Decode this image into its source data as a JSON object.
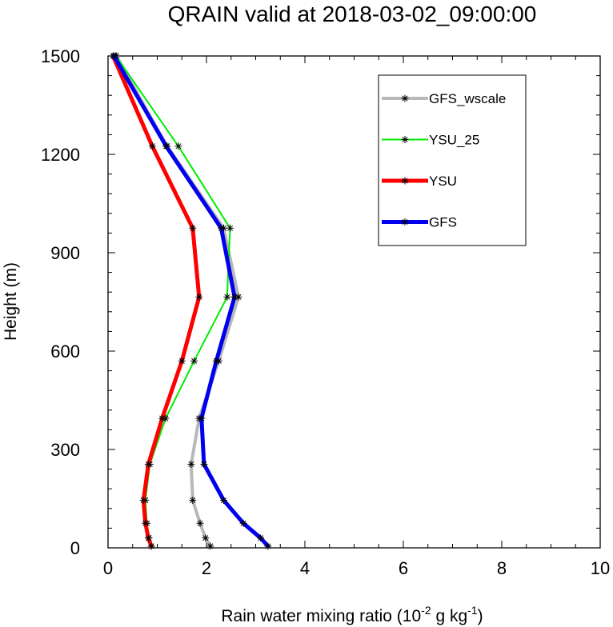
{
  "chart_data": {
    "type": "line",
    "title": "QRAIN valid at 2018-03-02_09:00:00",
    "xlabel": {
      "base": "Rain water mixing ratio (10",
      "exp1": "-2",
      "mid": " g kg",
      "exp2": "-1",
      "end": ")"
    },
    "ylabel": "Height (m)",
    "xlim": [
      0,
      10
    ],
    "ylim": [
      0,
      1500
    ],
    "xticks": [
      0,
      2,
      4,
      6,
      8,
      10
    ],
    "yticks": [
      0,
      300,
      600,
      900,
      1200,
      1500
    ],
    "grid": false,
    "legend_position": "top-right",
    "series": [
      {
        "name": "GFS_wscale",
        "color": "#b8b8b8",
        "width": 4,
        "x": [
          2.08,
          1.98,
          1.87,
          1.72,
          1.69,
          1.85,
          2.25,
          2.65,
          2.35,
          1.2,
          0.17
        ],
        "y": [
          5,
          30,
          75,
          145,
          255,
          395,
          570,
          765,
          975,
          1225,
          1500
        ]
      },
      {
        "name": "YSU_25",
        "color": "#00ee00",
        "width": 2,
        "x": [
          0.88,
          0.83,
          0.79,
          0.76,
          0.85,
          1.17,
          1.75,
          2.42,
          2.48,
          1.43,
          0.16
        ],
        "y": [
          5,
          30,
          75,
          145,
          255,
          395,
          570,
          765,
          975,
          1225,
          1500
        ]
      },
      {
        "name": "YSU",
        "color": "#ff0000",
        "width": 5,
        "x": [
          0.88,
          0.82,
          0.76,
          0.72,
          0.82,
          1.1,
          1.5,
          1.85,
          1.72,
          0.9,
          0.1
        ],
        "y": [
          5,
          30,
          75,
          145,
          255,
          395,
          570,
          765,
          975,
          1225,
          1500
        ]
      },
      {
        "name": "GFS",
        "color": "#0000ee",
        "width": 5,
        "x": [
          3.25,
          3.1,
          2.75,
          2.35,
          1.95,
          1.9,
          2.2,
          2.57,
          2.3,
          1.18,
          0.12
        ],
        "y": [
          5,
          30,
          75,
          145,
          255,
          395,
          570,
          765,
          975,
          1225,
          1500
        ]
      }
    ]
  }
}
